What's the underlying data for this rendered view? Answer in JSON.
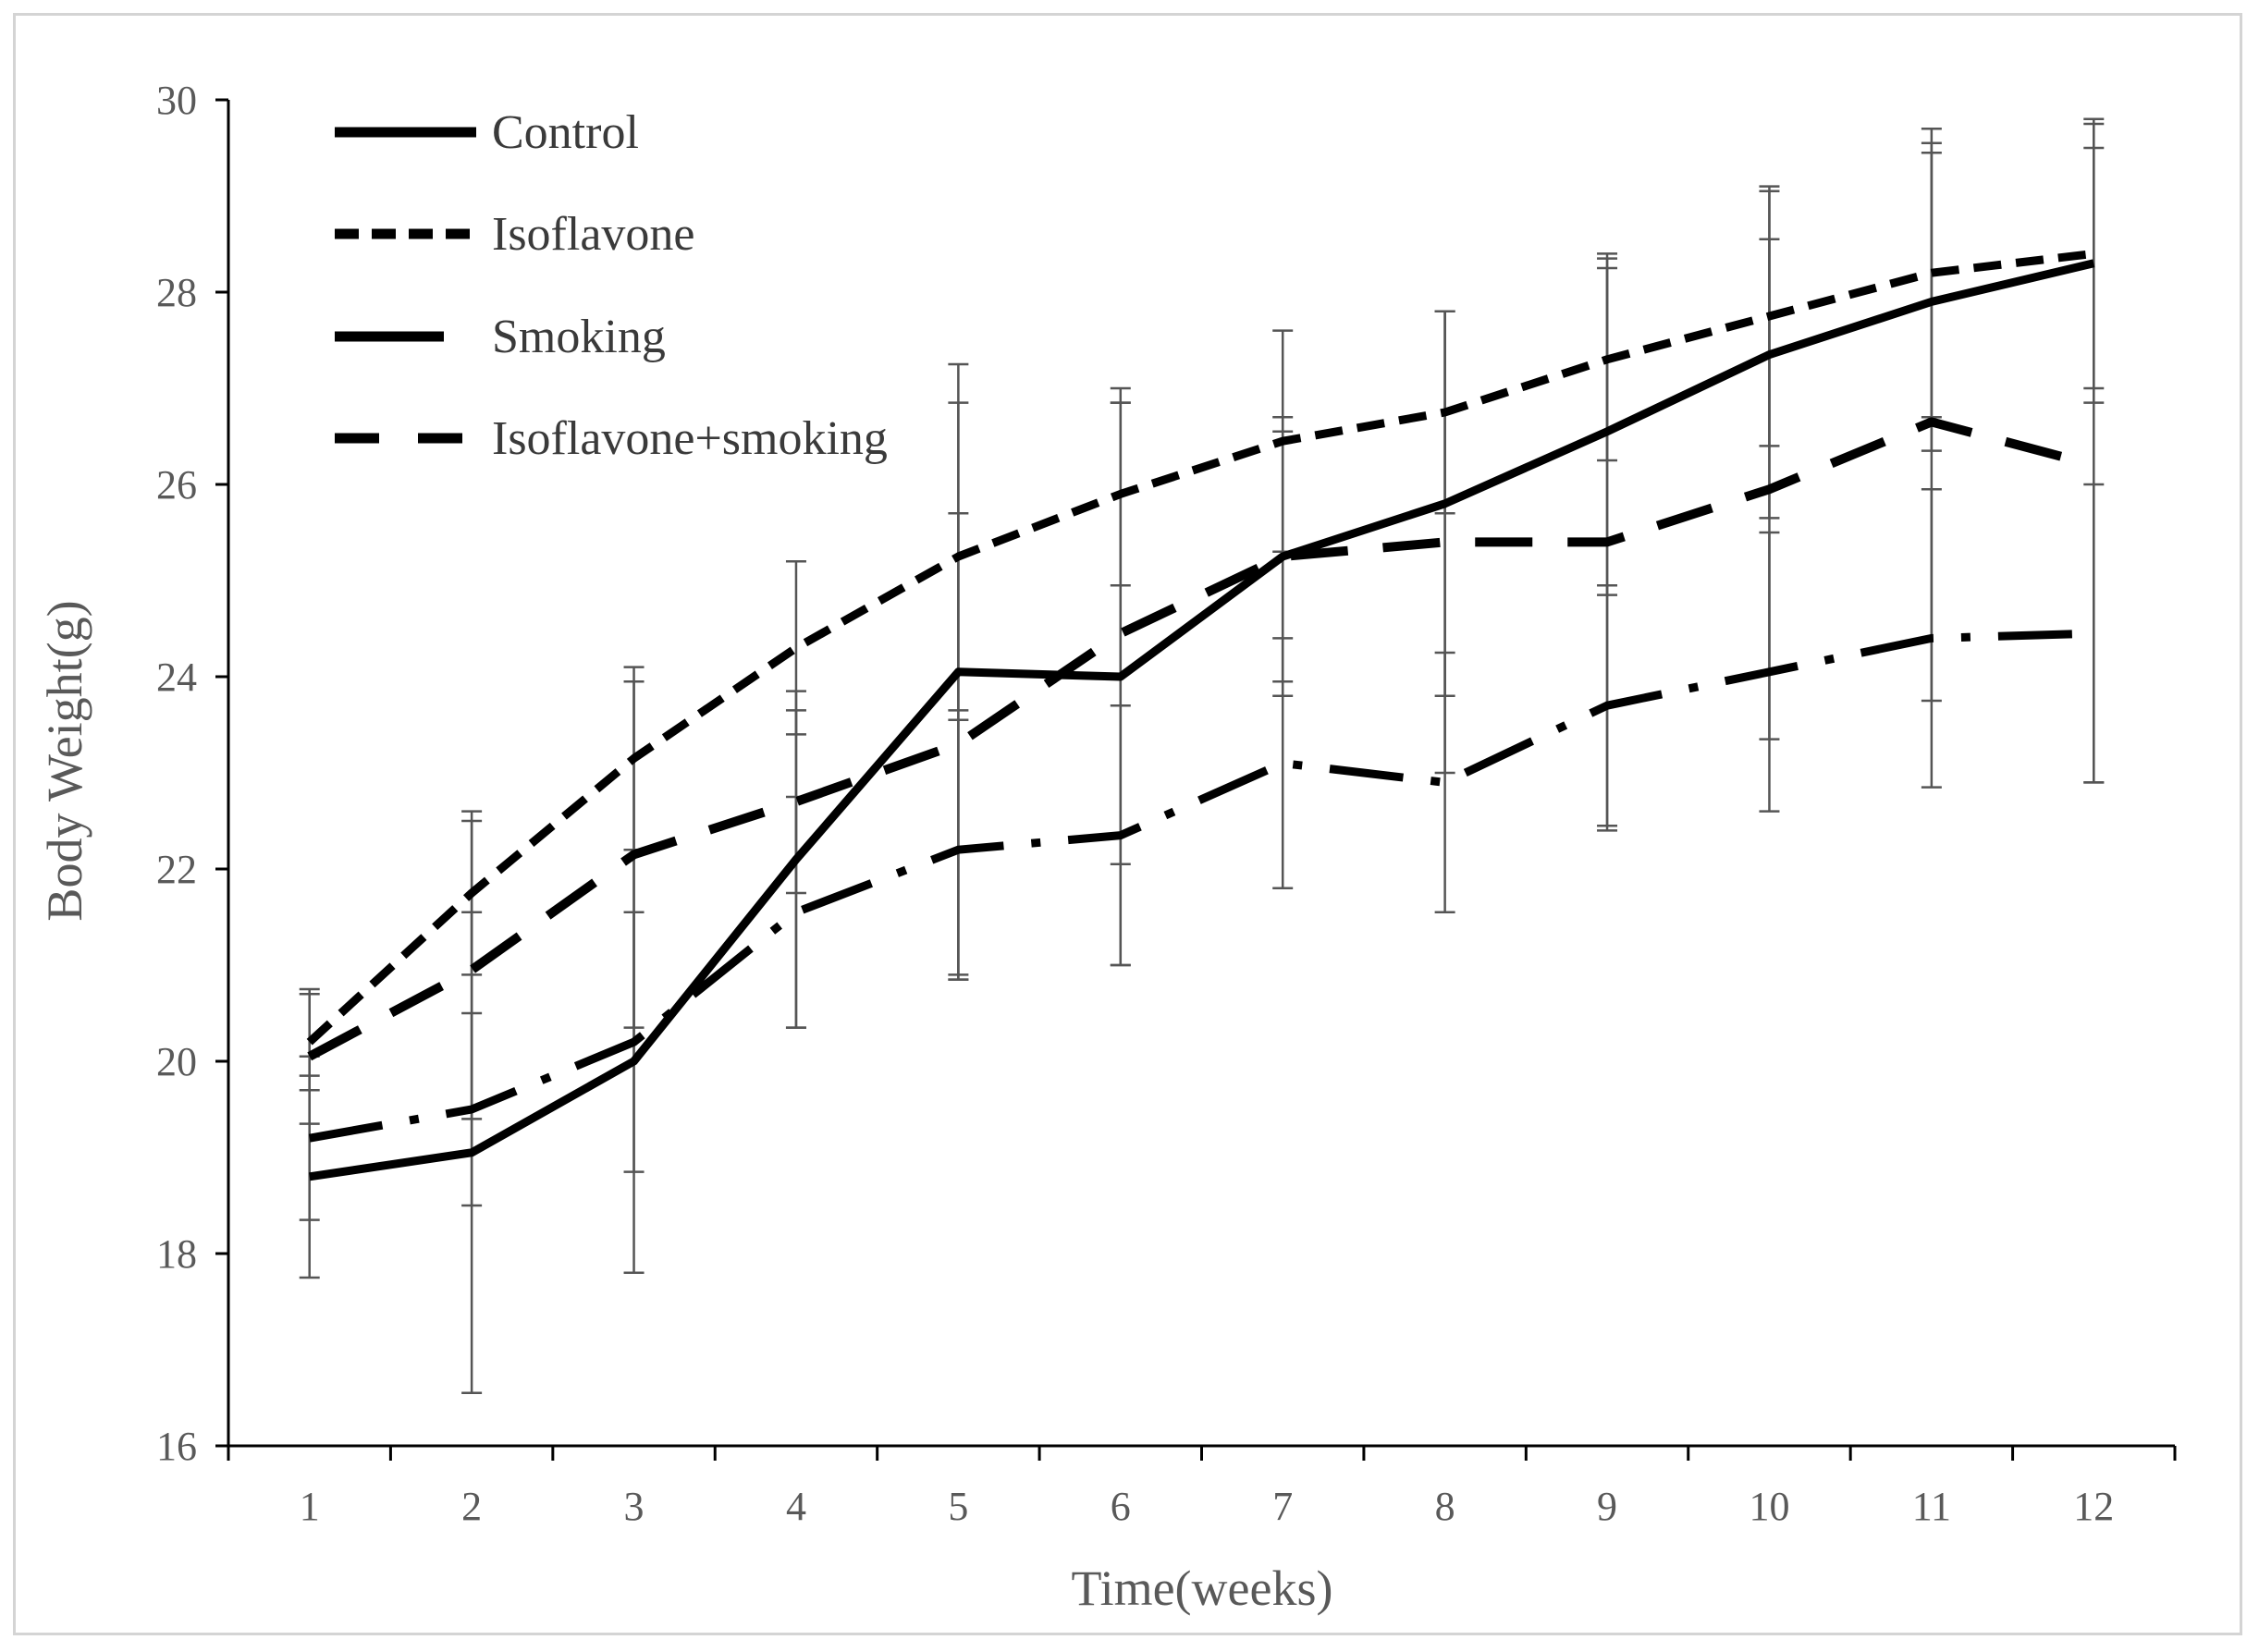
{
  "chart_data": {
    "type": "line",
    "title": "",
    "xlabel": "Time(weeks)",
    "ylabel": "Body Weight(g)",
    "categories": [
      "1",
      "2",
      "3",
      "4",
      "5",
      "6",
      "7",
      "8",
      "9",
      "10",
      "11",
      "12"
    ],
    "ylim": [
      16,
      30
    ],
    "yticks": [
      16,
      18,
      20,
      22,
      24,
      26,
      28,
      30
    ],
    "grid": false,
    "legend_position": "top-left",
    "series": [
      {
        "name": "Control",
        "style": "solid",
        "values": [
          18.8,
          19.05,
          20.0,
          22.1,
          24.05,
          24.0,
          25.25,
          25.8,
          26.55,
          27.35,
          27.9,
          28.3
        ],
        "error": [
          1.05,
          2.5,
          2.2,
          1.75,
          3.2,
          3.0,
          1.45,
          2.0,
          1.7,
          1.7,
          1.55,
          1.45
        ]
      },
      {
        "name": "Isoflavone",
        "style": "short-dash",
        "values": [
          20.2,
          21.75,
          23.15,
          24.3,
          25.25,
          25.9,
          26.45,
          26.75,
          27.3,
          27.75,
          28.2,
          28.4
        ],
        "error": [
          0.5,
          0.85,
          0.95,
          0.9,
          1.6,
          0.95,
          1.15,
          1.05,
          1.05,
          1.35,
          1.5,
          1.4
        ]
      },
      {
        "name": "Smoking",
        "style": "long-dash-dot",
        "values": [
          19.2,
          19.5,
          20.2,
          21.55,
          22.2,
          22.35,
          23.1,
          22.9,
          23.7,
          24.05,
          24.4,
          24.45
        ],
        "error": [
          0.85,
          1.0,
          1.35,
          1.2,
          1.35,
          1.35,
          1.3,
          1.35,
          1.25,
          1.45,
          1.55,
          1.55
        ]
      },
      {
        "name": "Isoflavone+smoking",
        "style": "long-dash",
        "values": [
          20.05,
          20.95,
          22.15,
          22.7,
          23.3,
          24.45,
          25.25,
          25.4,
          25.4,
          25.95,
          26.65,
          26.2
        ],
        "error": [
          0.7,
          1.55,
          1.8,
          0.95,
          2.4,
          2.4,
          1.3,
          2.4,
          3.0,
          2.6,
          2.9,
          3.3
        ]
      }
    ]
  }
}
